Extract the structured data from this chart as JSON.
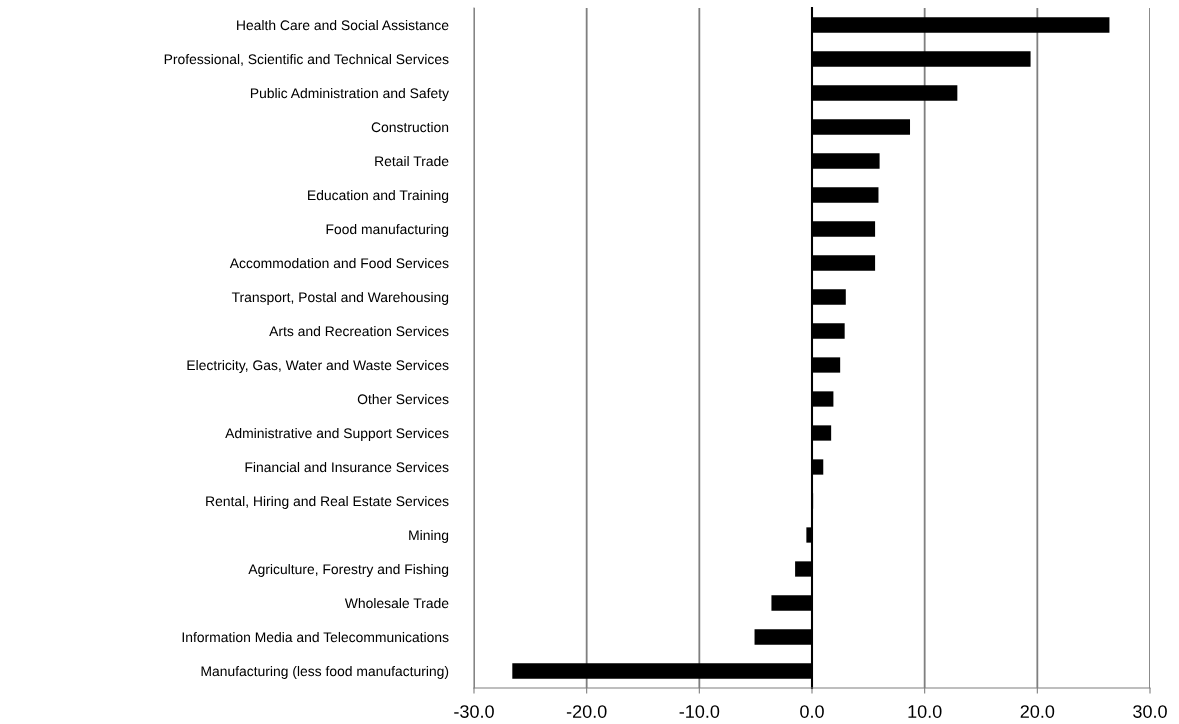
{
  "chart_data": {
    "type": "bar",
    "orientation": "horizontal",
    "categories": [
      "Health Care and Social Assistance",
      "Professional, Scientific and Technical Services",
      "Public Administration and Safety",
      "Construction",
      "Retail Trade",
      "Education and Training",
      "Food manufacturing",
      "Accommodation and Food Services",
      "Transport, Postal and Warehousing",
      "Arts and Recreation Services",
      "Electricity, Gas, Water and Waste Services",
      "Other Services",
      "Administrative and Support Services",
      "Financial and Insurance Services",
      "Rental, Hiring and Real Estate Services",
      "Mining",
      "Agriculture, Forestry and Fishing",
      "Wholesale Trade",
      "Information Media and Telecommunications",
      "Manufacturing (less food manufacturing)"
    ],
    "values": [
      26.4,
      19.4,
      12.9,
      8.7,
      6.0,
      5.9,
      5.6,
      5.6,
      3.0,
      2.9,
      2.5,
      1.9,
      1.7,
      1.0,
      0.1,
      -0.5,
      -1.5,
      -3.6,
      -5.1,
      -26.6
    ],
    "color": "#000000",
    "xlim": [
      -30,
      30
    ],
    "xticks": [
      {
        "value": -30,
        "label": "-30.0"
      },
      {
        "value": -20,
        "label": "-20.0"
      },
      {
        "value": -10,
        "label": "-10.0"
      },
      {
        "value": 0,
        "label": "0.0"
      },
      {
        "value": 10,
        "label": "10.0"
      },
      {
        "value": 20,
        "label": "20.0"
      },
      {
        "value": 30,
        "label": "30.0"
      }
    ],
    "grid": "x"
  }
}
